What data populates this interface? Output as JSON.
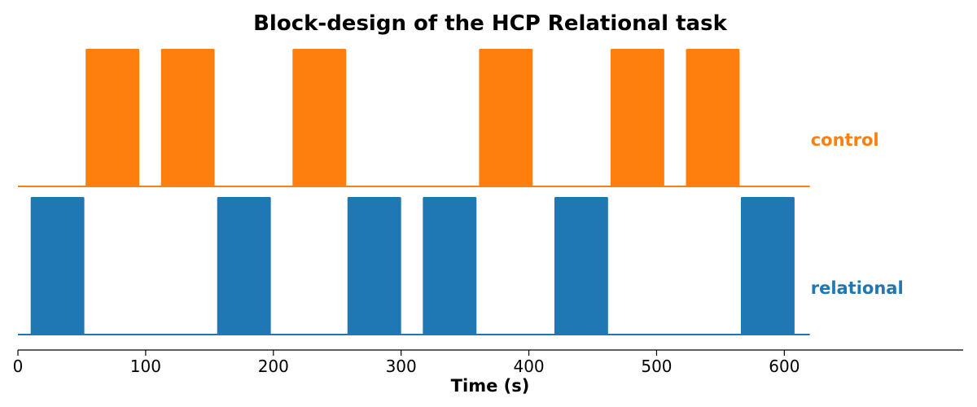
{
  "chart_data": {
    "type": "area",
    "title": "Block-design of the HCP Relational task",
    "xlabel": "Time (s)",
    "ylabel": "",
    "xlim": [
      0,
      740
    ],
    "xticks": [
      0,
      100,
      200,
      300,
      400,
      500,
      600
    ],
    "baseline_end": 620,
    "grid": false,
    "series": [
      {
        "name": "control",
        "color": "#ff7f0e",
        "blocks": [
          [
            53,
            95
          ],
          [
            112,
            154
          ],
          [
            215,
            257
          ],
          [
            361,
            403
          ],
          [
            464,
            506
          ],
          [
            523,
            565
          ]
        ]
      },
      {
        "name": "relational",
        "color": "#1f77b4",
        "blocks": [
          [
            10,
            52
          ],
          [
            156,
            198
          ],
          [
            258,
            300
          ],
          [
            317,
            359
          ],
          [
            420,
            462
          ],
          [
            566,
            608
          ]
        ]
      }
    ]
  }
}
